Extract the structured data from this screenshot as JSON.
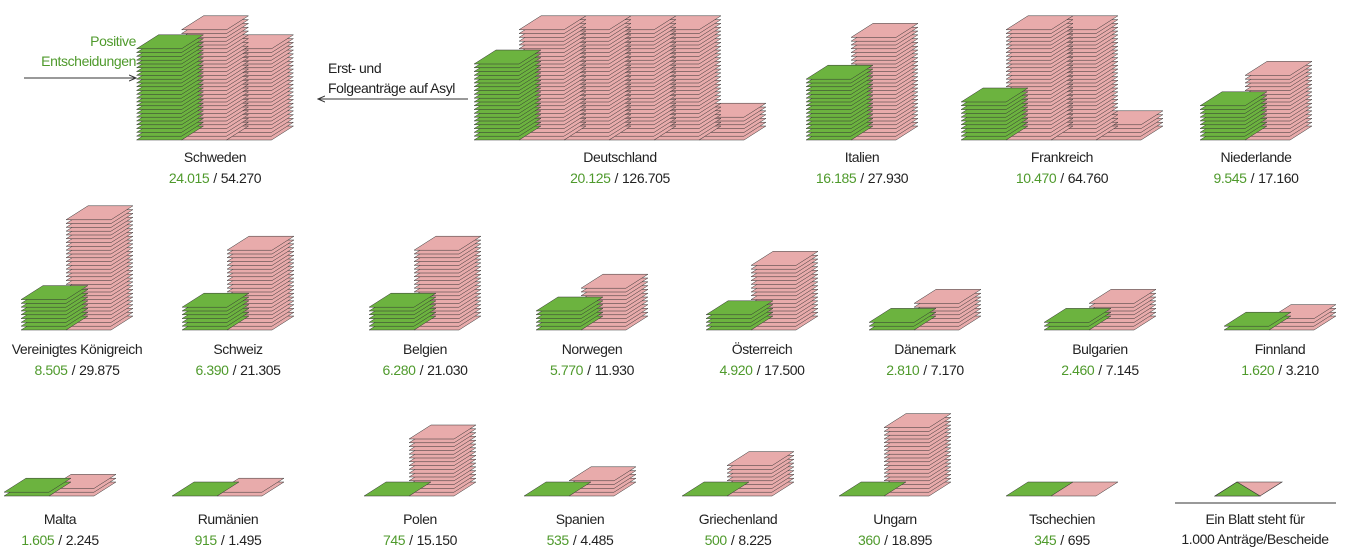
{
  "annotations": {
    "positive": [
      "Positive",
      "Entscheidungen"
    ],
    "applications": [
      "Erst- und",
      "Folgeanträge auf Asyl"
    ]
  },
  "separator": "/",
  "legend": [
    "Ein Blatt steht für",
    "1.000 Anträge/Bescheide"
  ],
  "colors": {
    "positive": "#6cb33f",
    "applications": "#e8abab"
  },
  "countries": [
    {
      "name": "Schweden",
      "positive": {
        "value": 24015,
        "label": "24.015"
      },
      "applications": {
        "value": 54270,
        "label": "54.270"
      }
    },
    {
      "name": "Deutschland",
      "positive": {
        "value": 20125,
        "label": "20.125"
      },
      "applications": {
        "value": 126705,
        "label": "126.705"
      }
    },
    {
      "name": "Italien",
      "positive": {
        "value": 16185,
        "label": "16.185"
      },
      "applications": {
        "value": 27930,
        "label": "27.930"
      }
    },
    {
      "name": "Frankreich",
      "positive": {
        "value": 10470,
        "label": "10.470"
      },
      "applications": {
        "value": 64760,
        "label": "64.760"
      }
    },
    {
      "name": "Niederlande",
      "positive": {
        "value": 9545,
        "label": "9.545"
      },
      "applications": {
        "value": 17160,
        "label": "17.160"
      }
    },
    {
      "name": "Vereinigtes Königreich",
      "positive": {
        "value": 8505,
        "label": "8.505"
      },
      "applications": {
        "value": 29875,
        "label": "29.875"
      }
    },
    {
      "name": "Schweiz",
      "positive": {
        "value": 6390,
        "label": "6.390"
      },
      "applications": {
        "value": 21305,
        "label": "21.305"
      }
    },
    {
      "name": "Belgien",
      "positive": {
        "value": 6280,
        "label": "6.280"
      },
      "applications": {
        "value": 21030,
        "label": "21.030"
      }
    },
    {
      "name": "Norwegen",
      "positive": {
        "value": 5770,
        "label": "5.770"
      },
      "applications": {
        "value": 11930,
        "label": "11.930"
      }
    },
    {
      "name": "Österreich",
      "positive": {
        "value": 4920,
        "label": "4.920"
      },
      "applications": {
        "value": 17500,
        "label": "17.500"
      }
    },
    {
      "name": "Dänemark",
      "positive": {
        "value": 2810,
        "label": "2.810"
      },
      "applications": {
        "value": 7170,
        "label": "7.170"
      }
    },
    {
      "name": "Bulgarien",
      "positive": {
        "value": 2460,
        "label": "2.460"
      },
      "applications": {
        "value": 7145,
        "label": "7.145"
      }
    },
    {
      "name": "Finnland",
      "positive": {
        "value": 1620,
        "label": "1.620"
      },
      "applications": {
        "value": 3210,
        "label": "3.210"
      }
    },
    {
      "name": "Malta",
      "positive": {
        "value": 1605,
        "label": "1.605"
      },
      "applications": {
        "value": 2245,
        "label": "2.245"
      }
    },
    {
      "name": "Rumänien",
      "positive": {
        "value": 915,
        "label": "915"
      },
      "applications": {
        "value": 1495,
        "label": "1.495"
      }
    },
    {
      "name": "Polen",
      "positive": {
        "value": 745,
        "label": "745"
      },
      "applications": {
        "value": 15150,
        "label": "15.150"
      }
    },
    {
      "name": "Spanien",
      "positive": {
        "value": 535,
        "label": "535"
      },
      "applications": {
        "value": 4485,
        "label": "4.485"
      }
    },
    {
      "name": "Griechenland",
      "positive": {
        "value": 500,
        "label": "500"
      },
      "applications": {
        "value": 8225,
        "label": "8.225"
      }
    },
    {
      "name": "Ungarn",
      "positive": {
        "value": 360,
        "label": "360"
      },
      "applications": {
        "value": 18895,
        "label": "18.895"
      }
    },
    {
      "name": "Tschechien",
      "positive": {
        "value": 345,
        "label": "345"
      },
      "applications": {
        "value": 695,
        "label": "695"
      }
    }
  ]
}
